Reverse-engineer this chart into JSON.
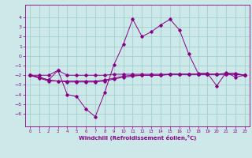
{
  "x": [
    0,
    1,
    2,
    3,
    4,
    5,
    6,
    7,
    8,
    9,
    10,
    11,
    12,
    13,
    14,
    15,
    16,
    17,
    18,
    19,
    20,
    21,
    22,
    23
  ],
  "y_main": [
    -2.0,
    -2.2,
    -2.5,
    -1.5,
    -4.0,
    -4.2,
    -5.5,
    -6.3,
    -3.8,
    -0.9,
    1.2,
    3.8,
    2.0,
    2.5,
    3.2,
    3.8,
    2.7,
    0.2,
    -1.8,
    -1.8,
    -3.1,
    -1.7,
    -2.2,
    -2.0
  ],
  "y_flat1": [
    -2.0,
    -2.2,
    -2.5,
    -2.6,
    -2.7,
    -2.7,
    -2.7,
    -2.7,
    -2.6,
    -2.4,
    -2.2,
    -2.1,
    -2.0,
    -2.0,
    -2.0,
    -1.9,
    -1.9,
    -1.9,
    -1.9,
    -1.9,
    -1.9,
    -1.9,
    -1.9,
    -2.0
  ],
  "y_flat2": [
    -2.0,
    -2.3,
    -2.6,
    -2.6,
    -2.6,
    -2.6,
    -2.6,
    -2.6,
    -2.5,
    -2.3,
    -2.1,
    -2.0,
    -2.0,
    -2.0,
    -2.0,
    -1.9,
    -1.9,
    -1.9,
    -1.9,
    -1.9,
    -1.9,
    -1.9,
    -1.9,
    -2.0
  ],
  "y_upper": [
    -2.0,
    -2.0,
    -2.0,
    -1.5,
    -2.0,
    -2.0,
    -2.0,
    -2.0,
    -2.0,
    -1.9,
    -1.9,
    -1.9,
    -1.9,
    -1.9,
    -1.9,
    -1.9,
    -1.9,
    -1.9,
    -1.9,
    -1.9,
    -1.9,
    -1.8,
    -1.8,
    -2.0
  ],
  "bg_color": "#cce8e8",
  "grid_color": "#99cccc",
  "line_color": "#880088",
  "xlabel": "Windchill (Refroidissement éolien,°C)",
  "ylim": [
    -7,
    5
  ],
  "xlim": [
    -0.5,
    23.5
  ],
  "yticks": [
    -6,
    -5,
    -4,
    -3,
    -2,
    -1,
    0,
    1,
    2,
    3,
    4
  ],
  "xticks": [
    0,
    1,
    2,
    3,
    4,
    5,
    6,
    7,
    8,
    9,
    10,
    11,
    12,
    13,
    14,
    15,
    16,
    17,
    18,
    19,
    20,
    21,
    22,
    23
  ]
}
